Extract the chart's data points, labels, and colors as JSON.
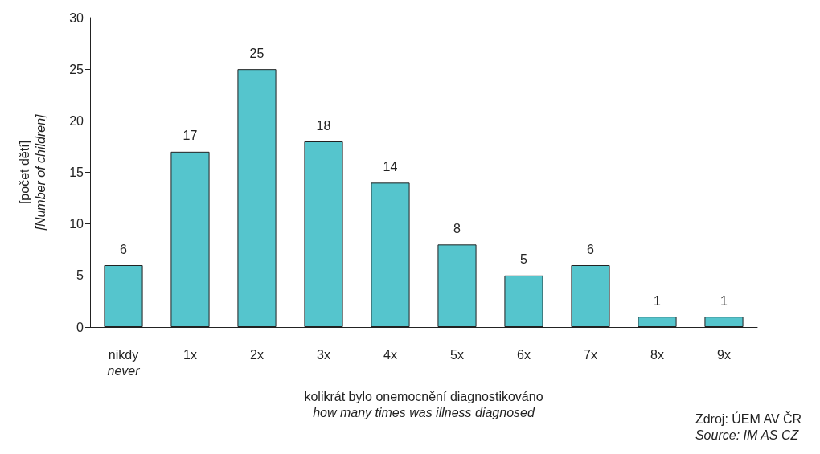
{
  "chart_data": {
    "type": "bar",
    "categories": [
      "nikdy\nnever",
      "1x",
      "2x",
      "3x",
      "4x",
      "5x",
      "6x",
      "7x",
      "8x",
      "9x"
    ],
    "values": [
      6,
      17,
      25,
      18,
      14,
      8,
      5,
      6,
      1,
      1
    ],
    "color": "#55c5cd",
    "ylim": [
      0,
      30
    ],
    "yticks": [
      0,
      5,
      10,
      15,
      20,
      25,
      30
    ],
    "xlabel": "kolikrát bylo onemocnění diagnostikováno\nhow many times was illness diagnosed",
    "ylabel": "[počet dětí]\n[Number of children]",
    "annotations": [
      "Zdroj: ÚEM AV ČR\nSource: IM AS CZ"
    ],
    "data_labels": true
  }
}
